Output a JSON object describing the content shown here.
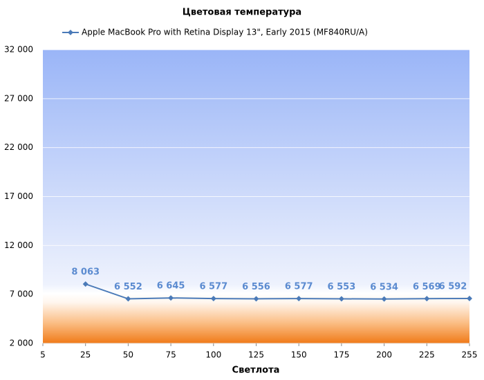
{
  "chart_data": {
    "type": "line",
    "title": "Цветовая температура",
    "x_label": "Светлота",
    "categories": [
      "5",
      "25",
      "50",
      "75",
      "100",
      "125",
      "150",
      "175",
      "200",
      "225",
      "255"
    ],
    "series": [
      {
        "name": "Apple MacBook Pro with Retina Display 13\", Early 2015 (MF840RU/A)",
        "color": "#4a7ab8",
        "values": [
          null,
          8063,
          6552,
          6645,
          6577,
          6556,
          6577,
          6553,
          6534,
          6569,
          6592
        ],
        "value_labels": [
          null,
          "8 063",
          "6 552",
          "6 645",
          "6 577",
          "6 556",
          "6 577",
          "6 553",
          "6 534",
          "6 569",
          "6 592"
        ]
      }
    ],
    "ylim": [
      2000,
      32000
    ],
    "yticks": [
      {
        "value": 2000,
        "label": "2 000"
      },
      {
        "value": 7000,
        "label": "7 000"
      },
      {
        "value": 12000,
        "label": "12 000"
      },
      {
        "value": 17000,
        "label": "17 000"
      },
      {
        "value": 22000,
        "label": "22 000"
      },
      {
        "value": 27000,
        "label": "27 000"
      },
      {
        "value": 32000,
        "label": "32 000"
      }
    ],
    "grid": true,
    "legend": "top"
  }
}
